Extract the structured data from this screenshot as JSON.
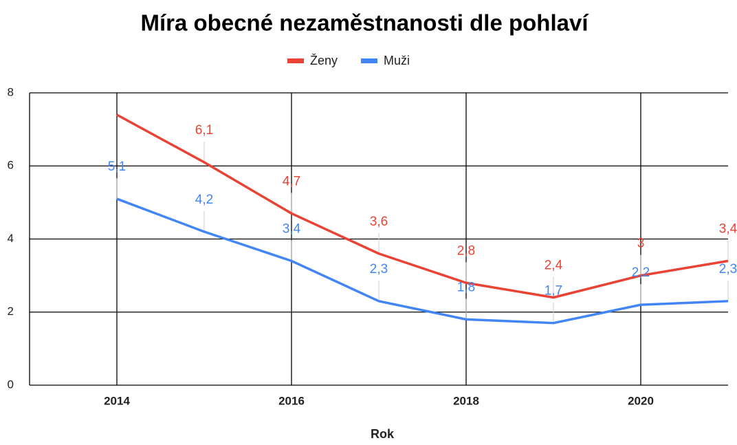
{
  "chart_data": {
    "type": "line",
    "title": "Míra obecné nezaměstnanosti dle pohlaví",
    "x": [
      2014,
      2015,
      2016,
      2017,
      2018,
      2019,
      2020,
      2021
    ],
    "series": [
      {
        "name": "Ženy",
        "color": "#ea4335",
        "values": [
          7.4,
          6.1,
          4.7,
          3.6,
          2.8,
          2.4,
          3,
          3.4
        ],
        "value_labels": [
          null,
          "6,1",
          "4,7",
          "3,6",
          "2,8",
          "2,4",
          "3",
          "3,4"
        ]
      },
      {
        "name": "Muži",
        "color": "#4285f4",
        "values": [
          5.1,
          4.2,
          3.4,
          2.3,
          1.8,
          1.7,
          2.2,
          2.3
        ],
        "value_labels": [
          "5,1",
          "4,2",
          "3,4",
          "2,3",
          "1,8",
          "1,7",
          "2,2",
          "2,3"
        ]
      }
    ],
    "x_label": "Rok",
    "xlim": [
      2013,
      2021
    ],
    "xticks": [
      2014,
      2016,
      2018,
      2020
    ],
    "ylim": [
      0,
      8
    ],
    "yticks": [
      0,
      2,
      4,
      6,
      8
    ],
    "grid": true,
    "legend": "top"
  }
}
